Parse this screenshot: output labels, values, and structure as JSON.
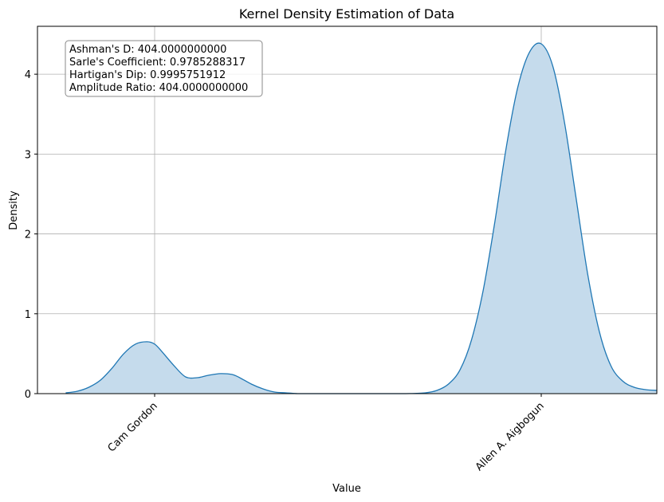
{
  "chart_data": {
    "type": "area",
    "title": "Kernel Density Estimation of Data",
    "xlabel": "Value",
    "ylabel": "Density",
    "ylim": [
      0,
      4.6
    ],
    "y_ticks": [
      0,
      1,
      2,
      3,
      4
    ],
    "x_ticks": [
      {
        "position": 0,
        "label": "Cam Gordon"
      },
      {
        "position": 1,
        "label": "Allen A. Aigbogun"
      }
    ],
    "xlim": [
      -0.23,
      1.3
    ],
    "grid": true,
    "stats_box": [
      "Ashman's D: 404.0000000000",
      "Sarle's Coefficient: 0.9785288317",
      "Hartigan's Dip: 0.9995751912",
      "Amplitude Ratio: 404.0000000000"
    ],
    "series": [
      {
        "color": "#1f77b4",
        "fill_color": "#c5dbec",
        "x": [
          -0.23,
          -0.2,
          -0.17,
          -0.14,
          -0.11,
          -0.08,
          -0.05,
          -0.02,
          0,
          0.02,
          0.05,
          0.08,
          0.11,
          0.14,
          0.17,
          0.2,
          0.22,
          0.25,
          0.28,
          0.31,
          0.34,
          0.37,
          0.4,
          0.45,
          0.5,
          0.55,
          0.6,
          0.65,
          0.7,
          0.73,
          0.76,
          0.79,
          0.82,
          0.85,
          0.88,
          0.91,
          0.94,
          0.97,
          1,
          1.03,
          1.06,
          1.09,
          1.12,
          1.15,
          1.18,
          1.21,
          1.24,
          1.27,
          1.3
        ],
        "y": [
          0.01,
          0.03,
          0.08,
          0.17,
          0.32,
          0.5,
          0.62,
          0.65,
          0.62,
          0.52,
          0.35,
          0.21,
          0.2,
          0.23,
          0.25,
          0.24,
          0.2,
          0.12,
          0.06,
          0.02,
          0.01,
          0,
          0,
          0,
          0,
          0,
          0,
          0,
          0.01,
          0.04,
          0.12,
          0.3,
          0.68,
          1.3,
          2.15,
          3.1,
          3.85,
          4.28,
          4.38,
          4.1,
          3.4,
          2.45,
          1.5,
          0.78,
          0.35,
          0.16,
          0.08,
          0.05,
          0.04
        ]
      }
    ]
  }
}
